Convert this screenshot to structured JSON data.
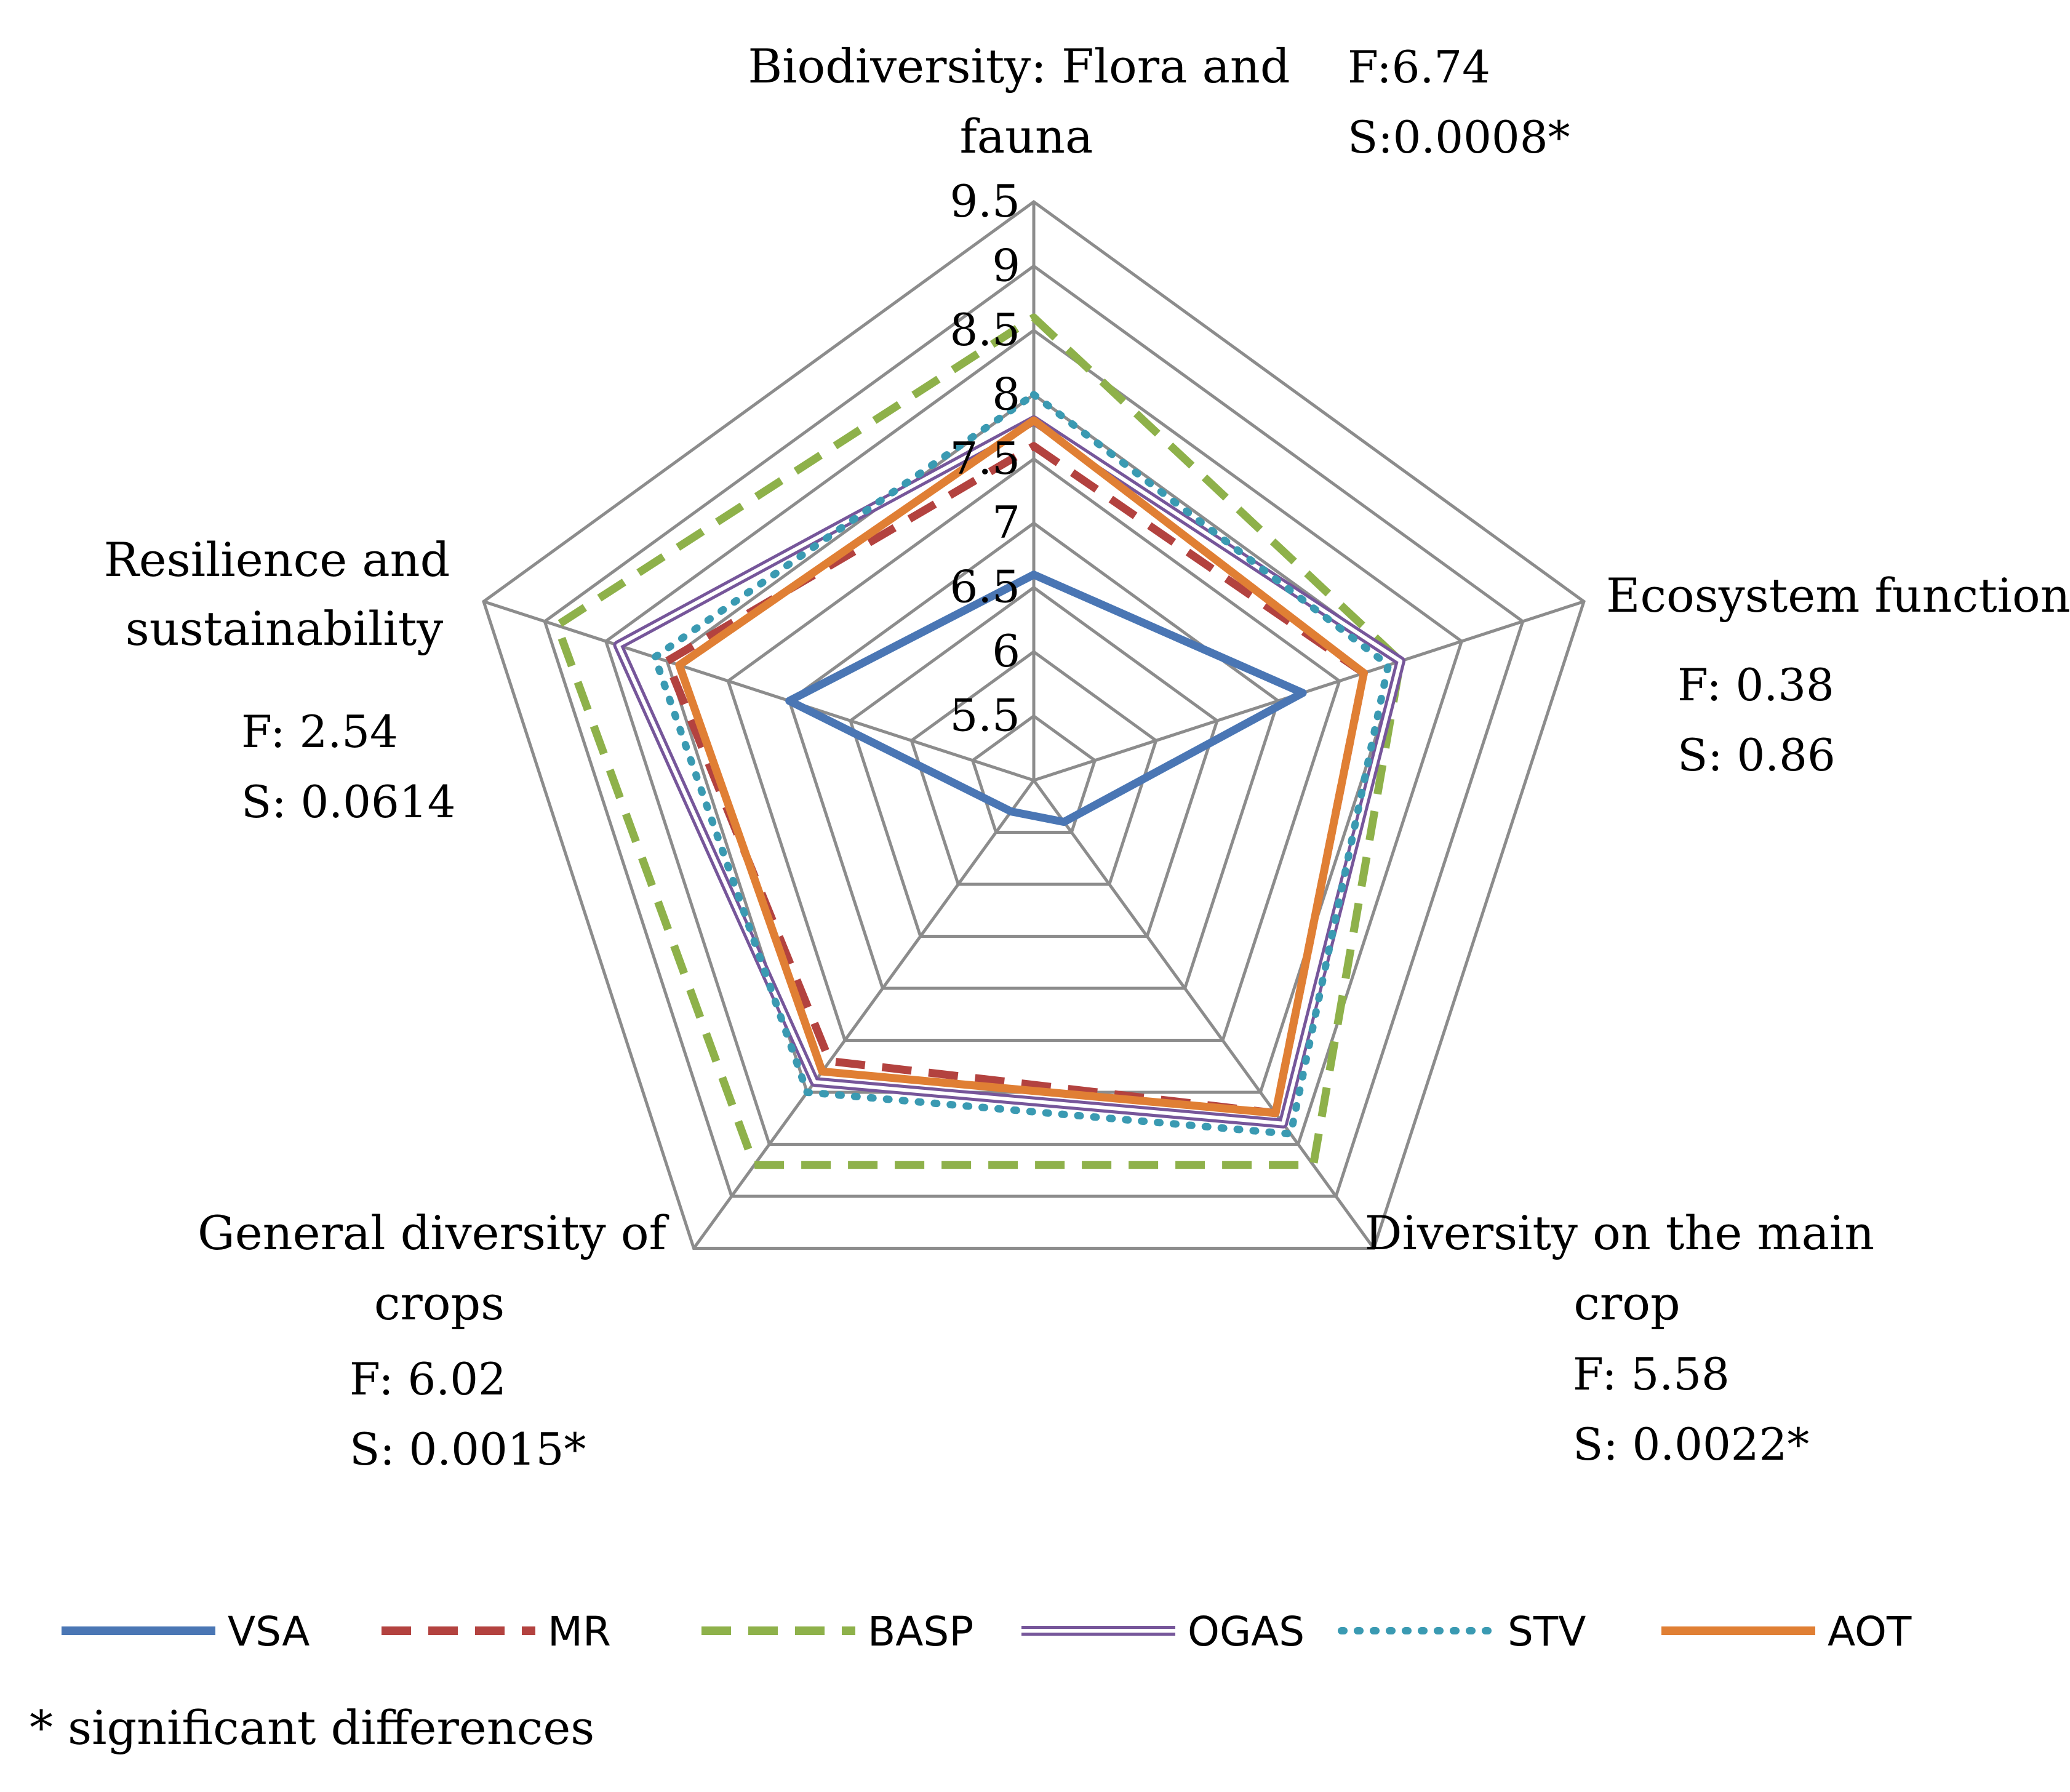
{
  "chart_data": {
    "type": "radar",
    "axes": [
      {
        "label": [
          "Biodiversity: Flora and",
          "fauna"
        ],
        "stat_f": "F:6.74",
        "stat_s": "S:0.0008*"
      },
      {
        "label": [
          "Ecosystem function"
        ],
        "stat_f": "F: 0.38",
        "stat_s": "S: 0.86"
      },
      {
        "label": [
          "Diversity on the main",
          "crop"
        ],
        "stat_f": "F: 5.58",
        "stat_s": "S: 0.0022*"
      },
      {
        "label": [
          "General diversity of",
          "crops"
        ],
        "stat_f": "F: 6.02",
        "stat_s": "S: 0.0015*"
      },
      {
        "label": [
          "Resilience and",
          "sustainability"
        ],
        "stat_f": "F: 2.54",
        "stat_s": "S: 0.0614"
      }
    ],
    "range": [
      5,
      9.5
    ],
    "ticks": [
      "5.5",
      "6",
      "6.5",
      "7",
      "7.5",
      "8",
      "8.5",
      "9",
      "9.5"
    ],
    "tick_values": [
      5.5,
      6,
      6.5,
      7,
      7.5,
      8,
      8.5,
      9,
      9.5
    ],
    "series": [
      {
        "name": "VSA",
        "color": "#4a76b4",
        "style": "solid",
        "values": [
          6.6,
          7.2,
          5.4,
          5.3,
          7.0
        ]
      },
      {
        "name": "MR",
        "color": "#b3423f",
        "style": "dashed",
        "values": [
          7.6,
          7.7,
          8.2,
          7.7,
          8.0
        ]
      },
      {
        "name": "BASP",
        "color": "#8eb14a",
        "style": "dashed",
        "values": [
          8.6,
          8.0,
          8.7,
          8.7,
          8.9
        ]
      },
      {
        "name": "OGAS",
        "color": "#76569a",
        "style": "double",
        "values": [
          7.8,
          8.0,
          8.3,
          7.9,
          8.4
        ]
      },
      {
        "name": "STV",
        "color": "#3a9ab2",
        "style": "dotted",
        "values": [
          8.0,
          7.9,
          8.4,
          8.0,
          8.1
        ]
      },
      {
        "name": "AOT",
        "color": "#e07f34",
        "style": "solid",
        "values": [
          7.8,
          7.7,
          8.2,
          7.8,
          7.9
        ]
      }
    ]
  },
  "footnote": "* significant differences"
}
